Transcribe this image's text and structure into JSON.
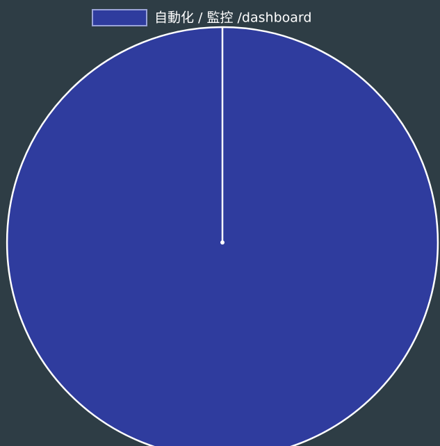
{
  "chart_data": {
    "type": "pie",
    "categories": [
      "自動化 / 監控 /dashboard"
    ],
    "values": [
      100
    ],
    "colors": [
      "#2f3c9e"
    ],
    "legend": "top"
  }
}
